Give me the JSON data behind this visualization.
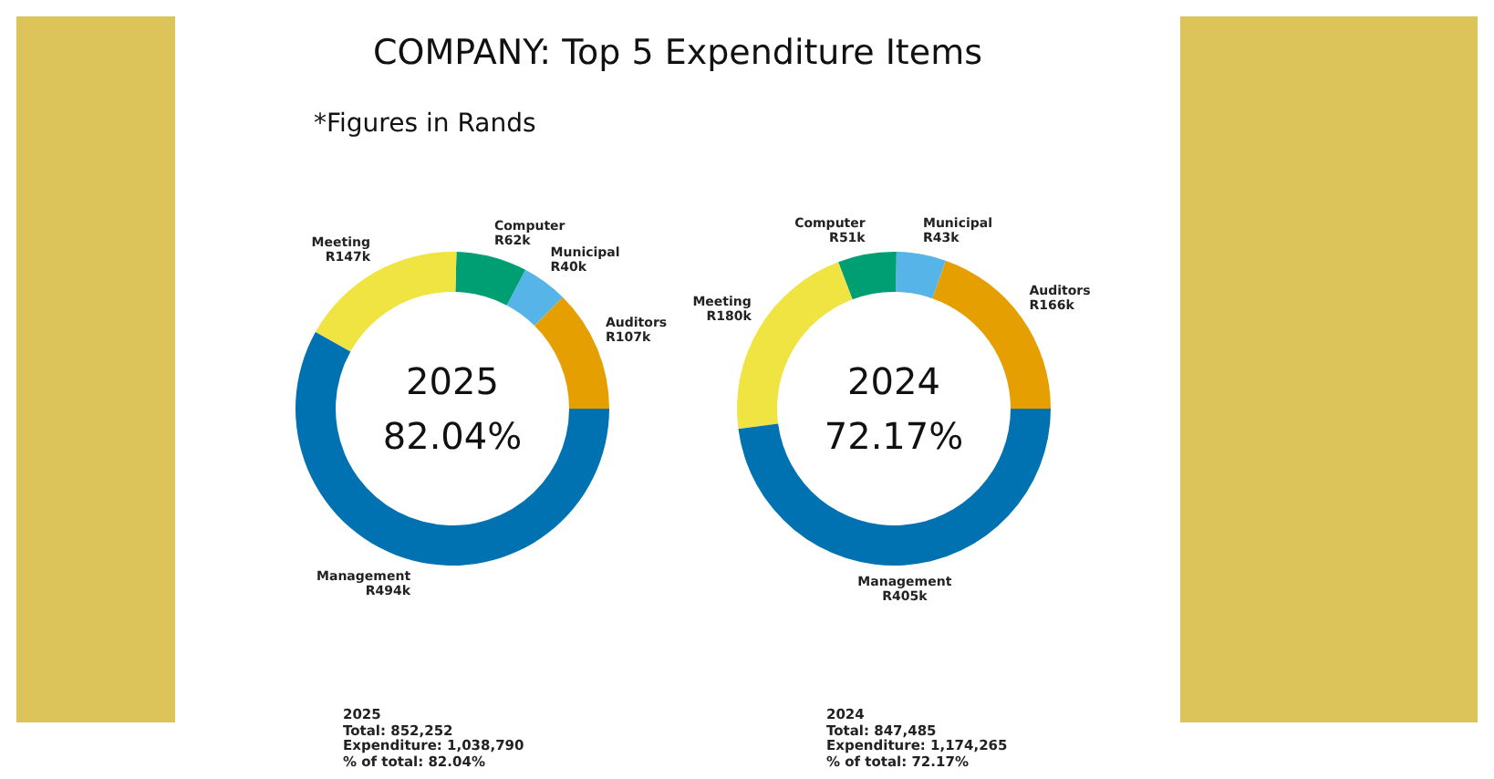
{
  "chart_data": [
    {
      "type": "donut",
      "title": "COMPANY: Top 5 Expenditure Items",
      "subtitle": "*Figures in Rands",
      "categories": [
        "Auditors",
        "Municipal",
        "Computer",
        "Meeting",
        "Management"
      ],
      "values": [
        107000,
        40000,
        62000,
        147000,
        494000
      ],
      "value_labels": [
        "R107k",
        "R40k",
        "R62k",
        "R147k",
        "R494k"
      ],
      "colors": [
        "#e69f00",
        "#56b4e9",
        "#009e73",
        "#f0e442",
        "#0072b2"
      ],
      "annotations": [
        "2025",
        "82.04%",
        "2025",
        "Total: 852,252",
        "Expenditure: 1,038,790",
        "% of total: 82.04%"
      ],
      "legend": false
    },
    {
      "type": "donut",
      "categories": [
        "Auditors",
        "Municipal",
        "Computer",
        "Meeting",
        "Management"
      ],
      "values": [
        166000,
        43000,
        51000,
        180000,
        405000
      ],
      "value_labels": [
        "R166k",
        "R43k",
        "R51k",
        "R180k",
        "R405k"
      ],
      "colors": [
        "#e69f00",
        "#56b4e9",
        "#009e73",
        "#f0e442",
        "#0072b2"
      ],
      "annotations": [
        "2024",
        "72.17%",
        "2024",
        "Total: 847,485",
        "Expenditure: 1,174,265",
        "% of total: 72.17%"
      ],
      "legend": false
    }
  ]
}
